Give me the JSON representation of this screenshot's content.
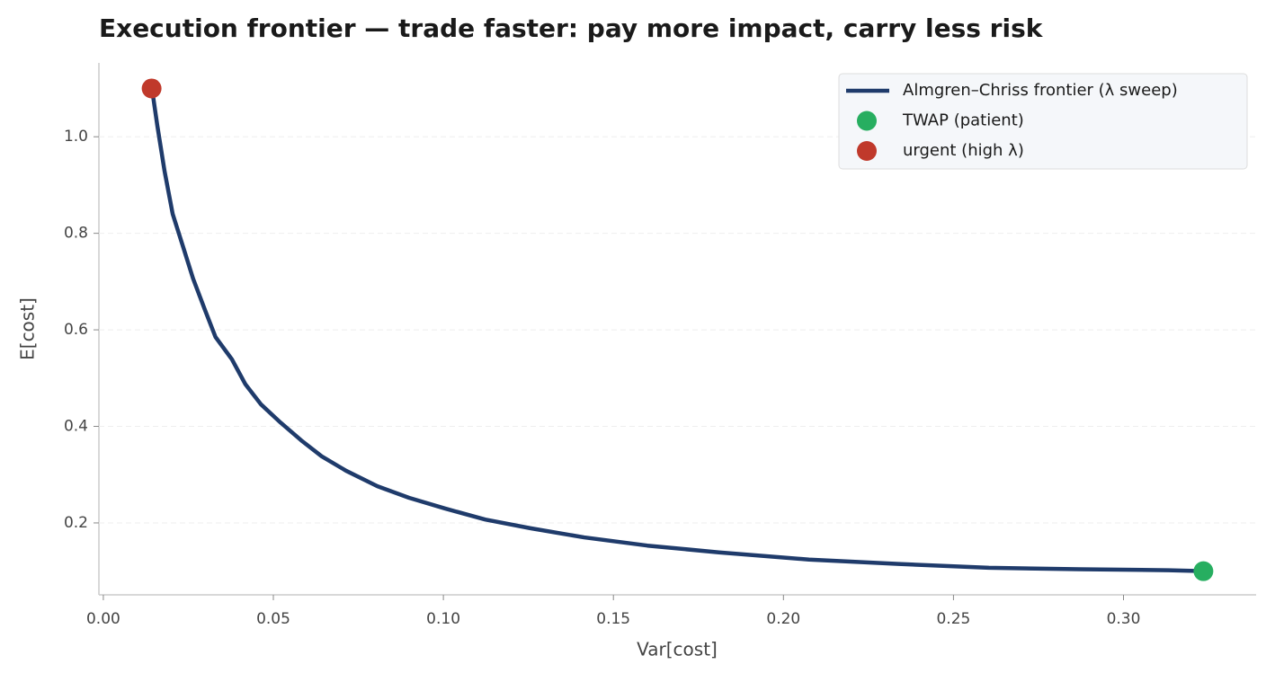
{
  "chart_data": {
    "type": "line",
    "title": "Execution frontier — trade faster: pay more impact, carry less risk",
    "x_label": "Var[cost]",
    "y_label": "E[cost]",
    "xlim": [
      -0.0013,
      0.339
    ],
    "ylim": [
      0.051,
      1.153
    ],
    "xticks": [
      {
        "value": 0,
        "label": "0.00"
      },
      {
        "value": 0.05,
        "label": "0.05"
      },
      {
        "value": 0.1,
        "label": "0.10"
      },
      {
        "value": 0.15,
        "label": "0.15"
      },
      {
        "value": 0.2,
        "label": "0.20"
      },
      {
        "value": 0.25,
        "label": "0.25"
      },
      {
        "value": 0.3,
        "label": "0.30"
      }
    ],
    "yticks": [
      0.2,
      0.4,
      0.6,
      0.8,
      {
        "value": 1.0,
        "label": "1.0"
      }
    ],
    "grid": true,
    "legend": "upper right",
    "series": [
      {
        "name": "Almgren–Chriss frontier (λ sweep)",
        "type": "line",
        "color": "#1f3b6b",
        "x": [
          0.0143,
          0.0159,
          0.018,
          0.0204,
          0.0235,
          0.0264,
          0.0299,
          0.033,
          0.0378,
          0.0418,
          0.0463,
          0.0521,
          0.0582,
          0.0642,
          0.0714,
          0.0806,
          0.0899,
          0.1004,
          0.1123,
          0.1256,
          0.1414,
          0.16,
          0.181,
          0.2075,
          0.2339,
          0.2604,
          0.287,
          0.3132,
          0.3235
        ],
        "values": [
          1.1,
          1.022,
          0.929,
          0.84,
          0.771,
          0.706,
          0.641,
          0.585,
          0.539,
          0.487,
          0.446,
          0.408,
          0.371,
          0.338,
          0.308,
          0.276,
          0.252,
          0.23,
          0.207,
          0.189,
          0.17,
          0.153,
          0.139,
          0.124,
          0.115,
          0.107,
          0.104,
          0.102,
          0.1
        ]
      },
      {
        "name": "TWAP (patient)",
        "type": "scatter",
        "color": "#27ae60",
        "x": [
          0.3235
        ],
        "values": [
          0.1
        ]
      },
      {
        "name": "urgent (high λ)",
        "type": "scatter",
        "color": "#c0392b",
        "x": [
          0.0142
        ],
        "values": [
          1.1
        ]
      }
    ]
  }
}
